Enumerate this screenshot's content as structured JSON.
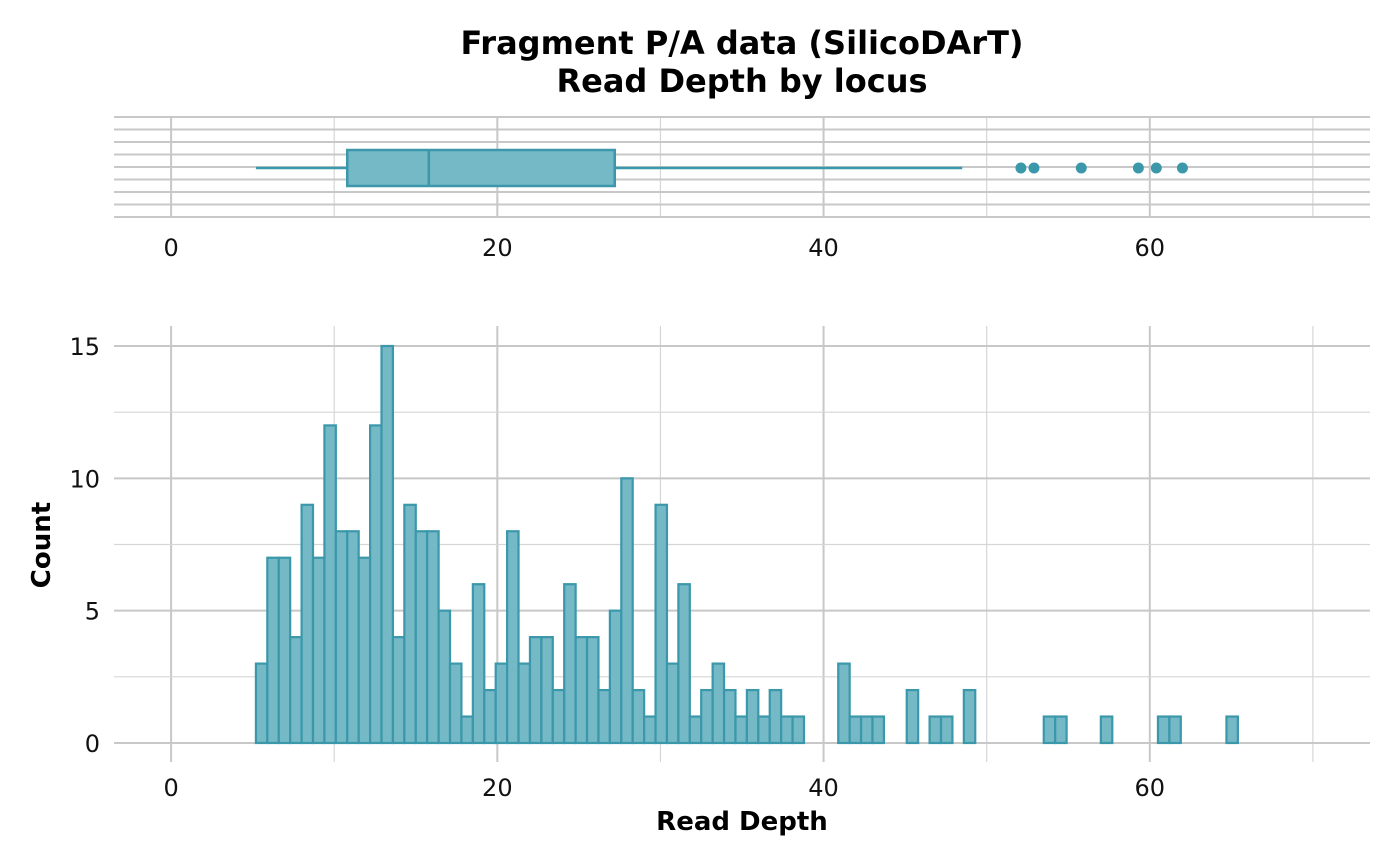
{
  "chart_data": {
    "type": "bar",
    "title": "Fragment P/A data (SilicoDArT)",
    "subtitle": "Read Depth by locus",
    "xlabel": "Read Depth",
    "ylabel": "Count",
    "xlim": [
      -3.5,
      73.5
    ],
    "ylim": [
      0,
      15
    ],
    "x_ticks": [
      "0",
      "20",
      "40",
      "60"
    ],
    "y_ticks": [
      "0",
      "5",
      "10",
      "15"
    ],
    "grid": true,
    "colors": {
      "fill": "#75b8c6",
      "stroke": "#3a98aa"
    },
    "histogram": {
      "bin_width": 0.7,
      "x_start": 0.3,
      "counts": [
        0,
        0,
        0,
        0,
        0,
        0,
        0,
        3,
        7,
        7,
        4,
        9,
        7,
        12,
        8,
        8,
        7,
        12,
        15,
        4,
        9,
        8,
        8,
        5,
        3,
        1,
        6,
        2,
        3,
        8,
        3,
        4,
        4,
        2,
        6,
        4,
        4,
        2,
        5,
        10,
        2,
        1,
        9,
        3,
        6,
        1,
        2,
        3,
        2,
        1,
        2,
        1,
        2,
        1,
        1,
        0,
        0,
        0,
        3,
        1,
        1,
        1,
        0,
        0,
        2,
        0,
        1,
        1,
        0,
        2,
        0,
        0,
        0,
        0,
        0,
        0,
        1,
        1,
        0,
        0,
        0,
        1,
        0,
        0,
        0,
        0,
        1,
        1,
        0,
        0,
        0,
        0,
        1,
        0,
        0,
        0,
        0,
        0,
        0,
        0,
        0,
        0,
        0,
        0
      ]
    },
    "boxplot": {
      "whisker_low": 5.2,
      "q1": 10.8,
      "median": 15.8,
      "q3": 27.2,
      "whisker_high": 48.5,
      "outliers": [
        52.1,
        52.9,
        55.8,
        59.3,
        60.4,
        62.0
      ]
    }
  }
}
